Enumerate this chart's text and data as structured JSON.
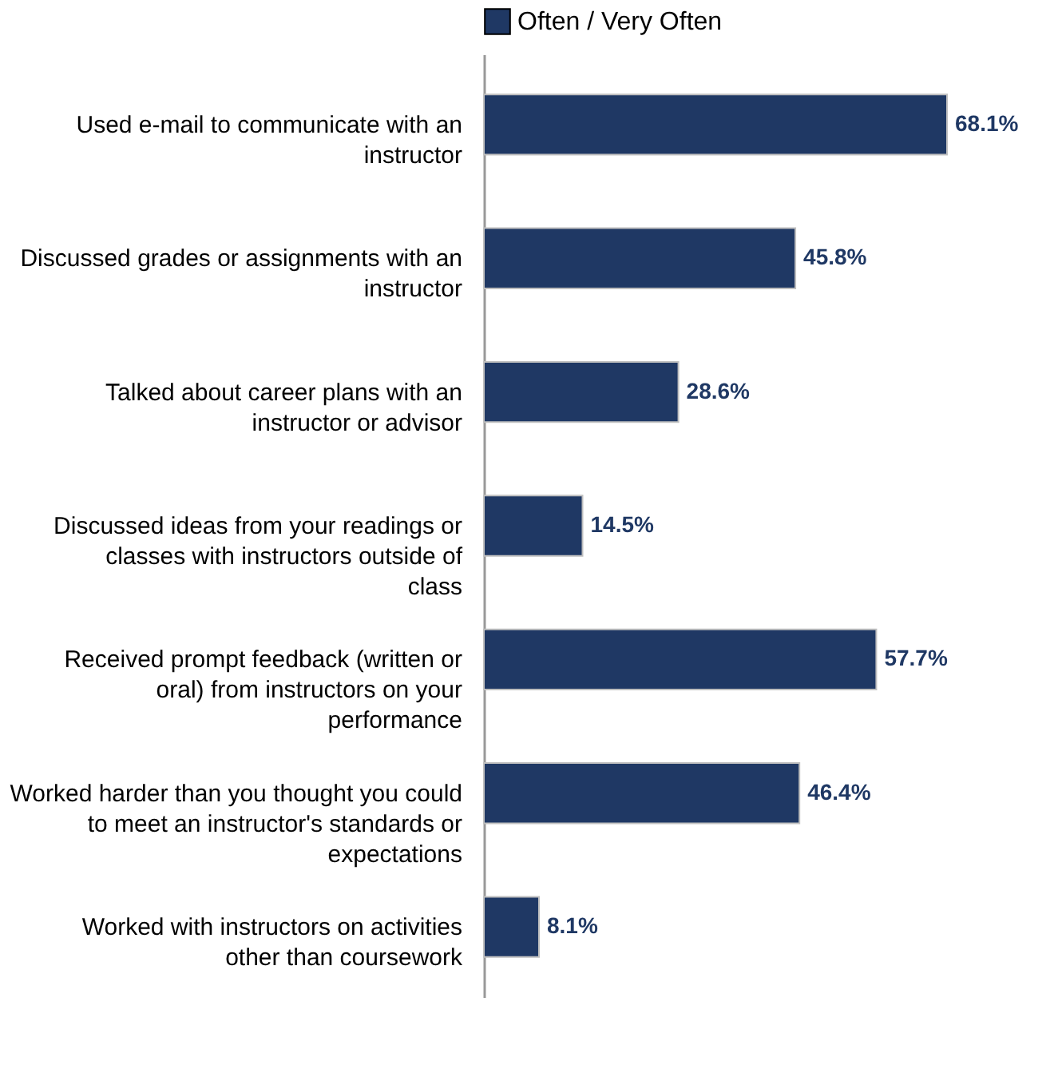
{
  "chart_data": {
    "type": "bar",
    "orientation": "horizontal",
    "legend": "top",
    "grid": false,
    "categories": [
      "Used e-mail to communicate with an instructor",
      "Discussed grades or assignments with an instructor",
      "Talked about career plans with an instructor or advisor",
      "Discussed ideas from your readings or classes with instructors outside of class",
      "Received prompt feedback (written or oral) from instructors on your performance",
      "Worked harder than you thought you could to meet an instructor's standards or expectations",
      "Worked with instructors on activities other than coursework"
    ],
    "series": [
      {
        "name": "Often / Very Often",
        "color": "#1f3864",
        "values": [
          68.1,
          45.8,
          28.6,
          14.5,
          57.7,
          46.4,
          8.1
        ],
        "value_labels": [
          "68.1%",
          "45.8%",
          "28.6%",
          "14.5%",
          "57.7%",
          "46.4%",
          "8.1%"
        ]
      }
    ]
  }
}
